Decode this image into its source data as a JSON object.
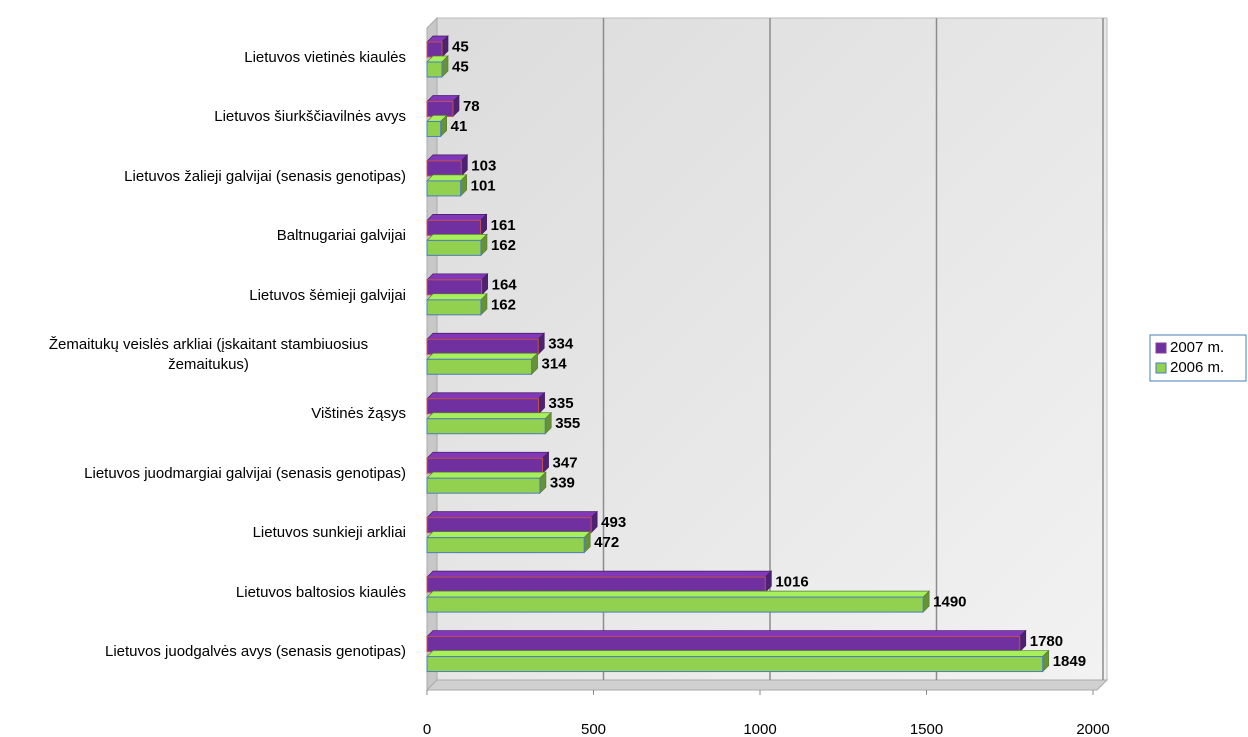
{
  "chart_data": {
    "type": "bar3d-horizontal",
    "categories": [
      "Lietuvos vietinės kiaulės",
      "Lietuvos šiurkščiavilnės avys",
      "Lietuvos žalieji galvijai (senasis genotipas)",
      "Baltnugariai galvijai",
      "Lietuvos šėmieji galvijai",
      "Žemaitukų veislės arkliai (įskaitant stambiuosius žemaitukus)",
      "Vištinės žąsys",
      "Lietuvos juodmargiai  galvijai (senasis genotipas)",
      "Lietuvos sunkieji arkliai",
      "Lietuvos baltosios  kiaulės",
      "Lietuvos juodgalvės avys (senasis genotipas)"
    ],
    "series": [
      {
        "name": "2007 m.",
        "color": "#7030a0",
        "values": [
          45,
          78,
          103,
          161,
          164,
          334,
          335,
          347,
          493,
          1016,
          1780
        ]
      },
      {
        "name": "2006 m.",
        "color": "#92d050",
        "values": [
          45,
          41,
          101,
          162,
          162,
          314,
          355,
          339,
          472,
          1490,
          1849
        ]
      }
    ],
    "xlim": [
      0,
      2000
    ],
    "xticks": [
      0,
      500,
      1000,
      1500,
      2000
    ],
    "grid": true,
    "legend": "right"
  }
}
